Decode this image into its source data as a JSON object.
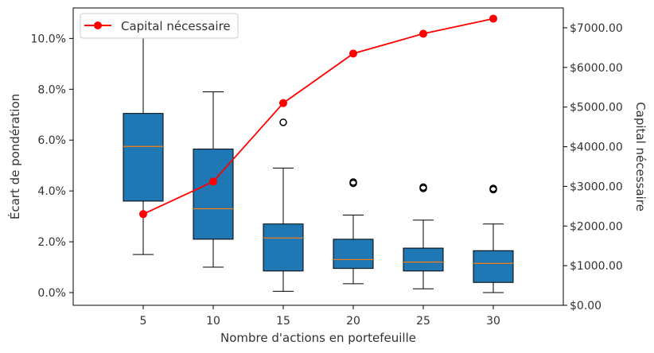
{
  "chart_data": {
    "type": "box+line",
    "xlabel": "Nombre d'actions en portefeuille",
    "ylabel_left": "Écart de pondération",
    "ylabel_right": "Capital nécessaire",
    "x_ticks": [
      "5",
      "10",
      "15",
      "20",
      "25",
      "30"
    ],
    "y_left_ticks": [
      "0.0%",
      "2.0%",
      "4.0%",
      "6.0%",
      "8.0%",
      "10.0%"
    ],
    "y_right_ticks": [
      "$0.00",
      "$1000.00",
      "$2000.00",
      "$3000.00",
      "$4000.00",
      "$5000.00",
      "$6000.00",
      "$7000.00"
    ],
    "y_left_range": [
      -0.5,
      11.2
    ],
    "y_right_range": [
      0,
      7500
    ],
    "boxes": [
      {
        "x": "5",
        "whisker_low": 1.5,
        "q1": 3.6,
        "median": 5.75,
        "q3": 7.05,
        "whisker_high": 10.9,
        "outliers": []
      },
      {
        "x": "10",
        "whisker_low": 1.0,
        "q1": 2.1,
        "median": 3.3,
        "q3": 5.65,
        "whisker_high": 7.9,
        "outliers": []
      },
      {
        "x": "15",
        "whisker_low": 0.05,
        "q1": 0.85,
        "median": 2.15,
        "q3": 2.7,
        "whisker_high": 4.9,
        "outliers": [
          6.7
        ]
      },
      {
        "x": "20",
        "whisker_low": 0.35,
        "q1": 0.95,
        "median": 1.3,
        "q3": 2.1,
        "whisker_high": 3.05,
        "outliers": [
          4.3,
          4.35
        ]
      },
      {
        "x": "25",
        "whisker_low": 0.15,
        "q1": 0.85,
        "median": 1.2,
        "q3": 1.75,
        "whisker_high": 2.85,
        "outliers": [
          4.1,
          4.15
        ]
      },
      {
        "x": "30",
        "whisker_low": 0.0,
        "q1": 0.4,
        "median": 1.15,
        "q3": 1.65,
        "whisker_high": 2.7,
        "outliers": [
          4.05,
          4.1
        ]
      }
    ],
    "series": [
      {
        "name": "Capital nécessaire",
        "axis": "right",
        "x": [
          "5",
          "10",
          "15",
          "20",
          "25",
          "30"
        ],
        "values": [
          2300,
          3120,
          5100,
          6350,
          6850,
          7230
        ]
      }
    ],
    "legend": {
      "placement": "top-left"
    },
    "grid": false,
    "colors": {
      "box_fill": "#1f77b4",
      "median": "#ff7f0e",
      "line": "#ff0000",
      "axis": "#000000"
    }
  }
}
